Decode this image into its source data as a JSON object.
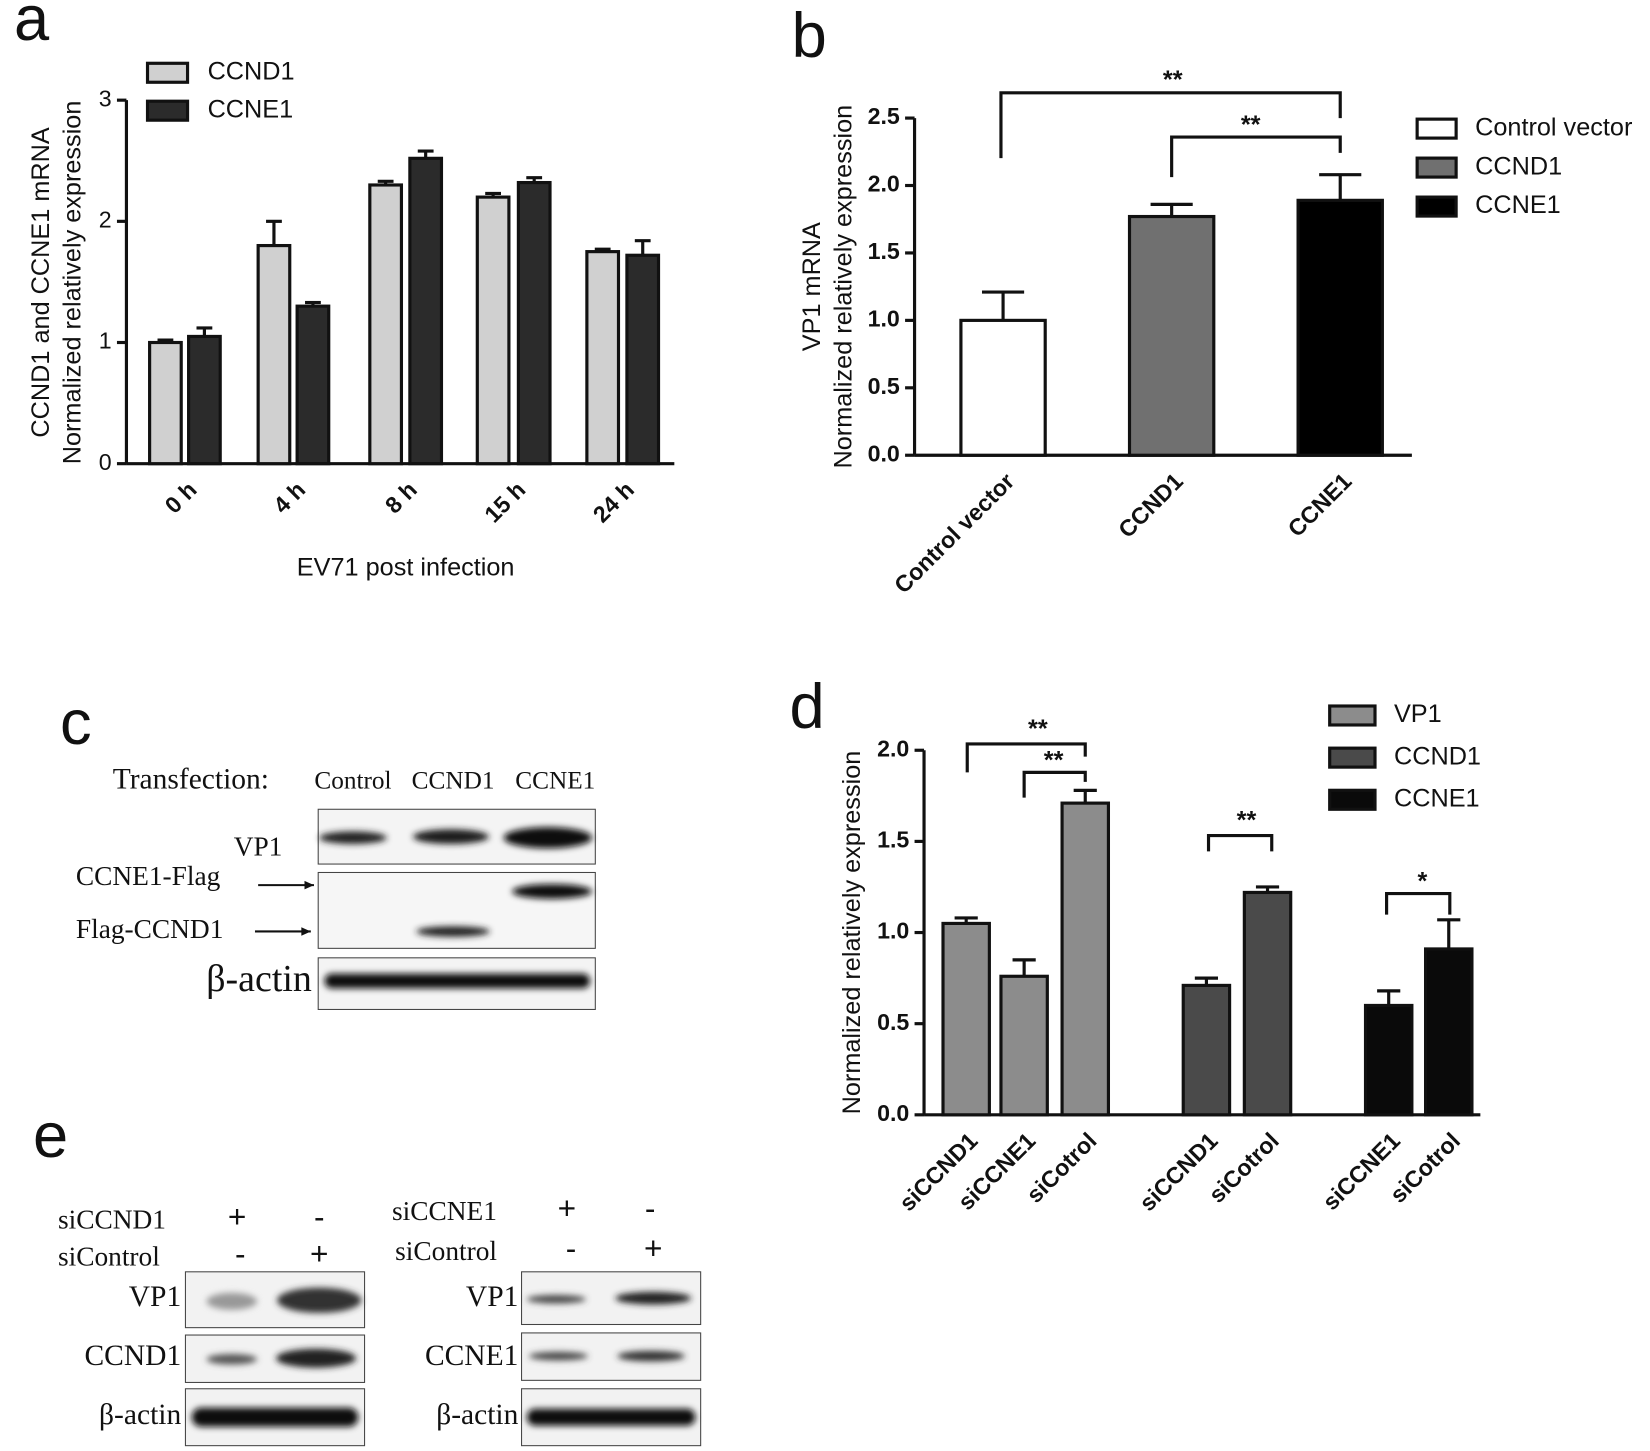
{
  "chart_data": [
    {
      "type": "bar",
      "panel": "a",
      "ylabel": [
        "CCND1 and CCNE1 mRNA",
        "Normalized relatively expression"
      ],
      "xlabel": "EV71 post infection",
      "categories": [
        "0 h",
        "4 h",
        "8 h",
        "15 h",
        "24 h"
      ],
      "series": [
        {
          "name": "CCND1",
          "color": "#d0d0d0",
          "values": [
            1.0,
            1.8,
            2.3,
            2.2,
            1.75
          ],
          "errors": [
            0.02,
            0.2,
            0.03,
            0.03,
            0.02
          ]
        },
        {
          "name": "CCNE1",
          "color": "#2b2b2b",
          "values": [
            1.05,
            1.3,
            2.52,
            2.32,
            1.72
          ],
          "errors": [
            0.07,
            0.03,
            0.06,
            0.04,
            0.12
          ]
        }
      ],
      "ylim": [
        0,
        3
      ],
      "yticks": [
        0,
        1,
        2,
        3
      ]
    },
    {
      "type": "bar",
      "panel": "b",
      "ylabel": [
        "VP1 mRNA",
        "Normalized relatively expression"
      ],
      "categories": [
        "Control vector",
        "CCND1",
        "CCNE1"
      ],
      "values": [
        1.0,
        1.77,
        1.89
      ],
      "errors": [
        0.21,
        0.09,
        0.19
      ],
      "colors": [
        "#ffffff",
        "#707070",
        "#000000"
      ],
      "ylim": [
        0,
        2.5
      ],
      "yticks": [
        {
          "value": 0,
          "label": "0.0"
        },
        0.5,
        {
          "value": 1,
          "label": "1.0"
        },
        1.5,
        {
          "value": 2,
          "label": "2.0"
        },
        2.5
      ],
      "annotations": [
        "**",
        "**"
      ]
    },
    {
      "type": "bar",
      "panel": "d",
      "ylabel": [
        "Normalized relatively expression"
      ],
      "series": [
        {
          "name": "VP1",
          "color": "#8c8c8c",
          "categories": [
            "siCCND1",
            "siCCNE1",
            "siCotrol"
          ],
          "values": [
            1.05,
            0.76,
            1.71
          ],
          "errors": [
            0.03,
            0.09,
            0.07
          ]
        },
        {
          "name": "CCND1",
          "color": "#4a4a4a",
          "categories": [
            "siCCND1",
            "siCotrol"
          ],
          "values": [
            0.71,
            1.22
          ],
          "errors": [
            0.04,
            0.03
          ]
        },
        {
          "name": "CCNE1",
          "color": "#0a0a0a",
          "categories": [
            "siCCNE1",
            "siCotrol"
          ],
          "values": [
            0.6,
            0.91
          ],
          "errors": [
            0.08,
            0.16
          ]
        }
      ],
      "ylim": [
        0,
        2
      ],
      "yticks": [
        {
          "value": 0,
          "label": "0.0"
        },
        0.5,
        {
          "value": 1,
          "label": "1.0"
        },
        1.5,
        {
          "value": 2,
          "label": "2.0"
        }
      ],
      "annotations": [
        "**",
        "**",
        "**",
        "*"
      ]
    }
  ],
  "blots": {
    "c": {
      "label": "c",
      "title": "Transfection:",
      "lanes": [
        "Control",
        "CCND1",
        "CCNE1"
      ],
      "rows": [
        "VP1",
        "CCNE1-Flag",
        "Flag-CCND1",
        "β-actin"
      ]
    },
    "e": {
      "label": "e",
      "panels": [
        {
          "conditions": [
            {
              "name": "siCCND1",
              "lanes": [
                "+",
                "-"
              ]
            },
            {
              "name": "siControl",
              "lanes": [
                "-",
                "+"
              ]
            }
          ],
          "rows": [
            "VP1",
            "CCND1",
            "β-actin"
          ]
        },
        {
          "conditions": [
            {
              "name": "siCCNE1",
              "lanes": [
                "+",
                "-"
              ]
            },
            {
              "name": "siControl",
              "lanes": [
                "-",
                "+"
              ]
            }
          ],
          "rows": [
            "VP1",
            "CCNE1",
            "β-actin"
          ]
        }
      ]
    }
  }
}
